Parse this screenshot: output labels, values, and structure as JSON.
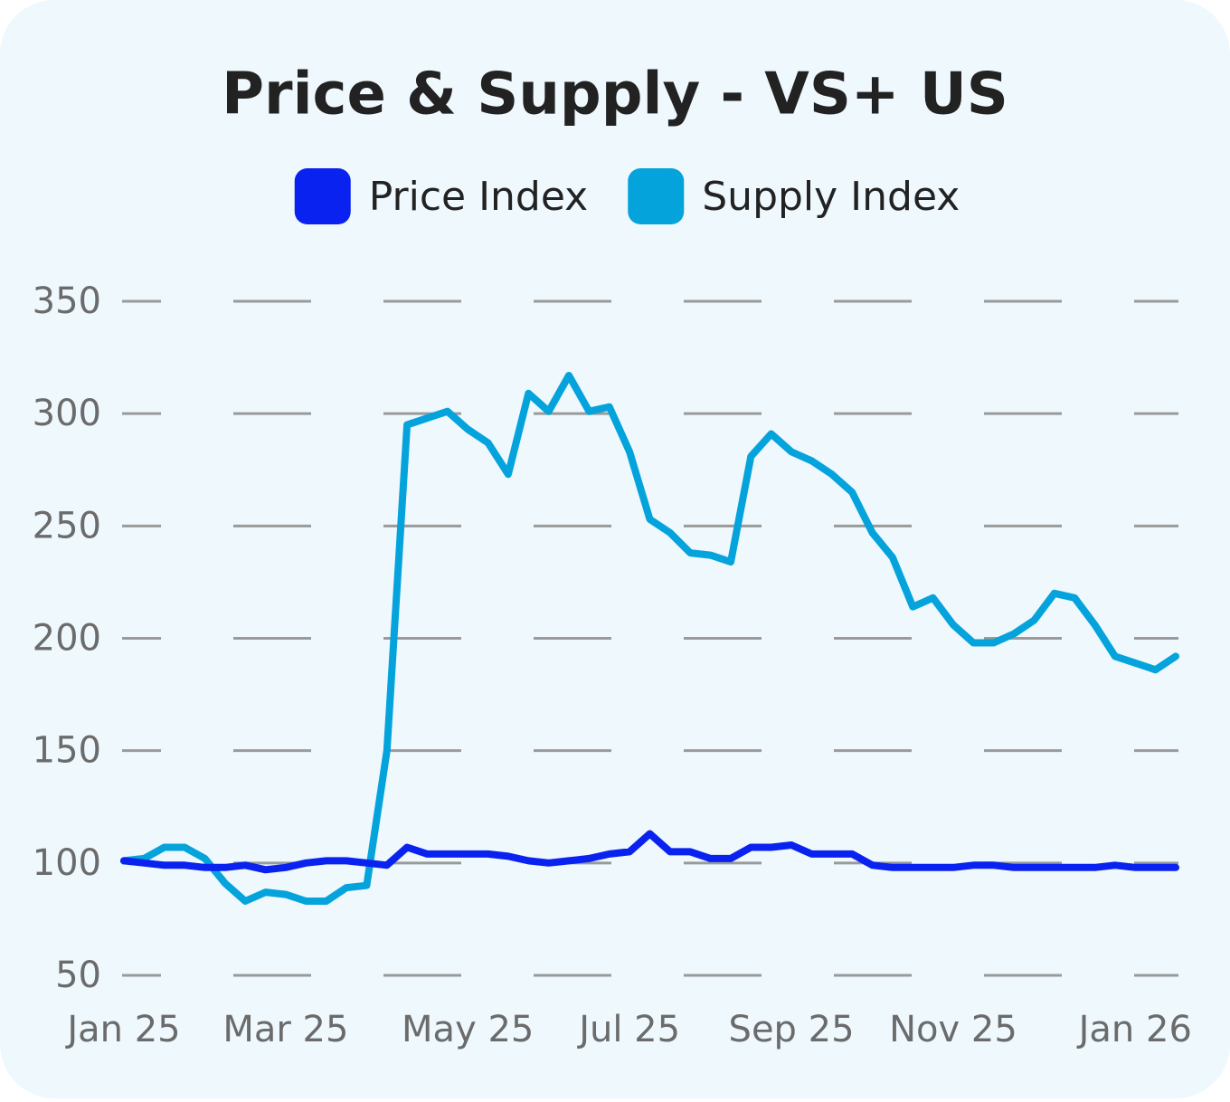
{
  "chart_data": {
    "type": "line",
    "title": "Price & Supply - VS+ US",
    "categories": [
      "Jan 25",
      null,
      null,
      null,
      null,
      null,
      null,
      null,
      "Mar 25",
      null,
      null,
      null,
      null,
      null,
      null,
      null,
      null,
      "May 25",
      null,
      null,
      null,
      null,
      null,
      null,
      null,
      "Jul 25",
      null,
      null,
      null,
      null,
      null,
      null,
      null,
      "Sep 25",
      null,
      null,
      null,
      null,
      null,
      null,
      null,
      "Nov 25",
      null,
      null,
      null,
      null,
      null,
      null,
      null,
      null,
      "Jan 26",
      null,
      null
    ],
    "series": [
      {
        "name": "Price Index",
        "color": "#0a22f0",
        "values": [
          101,
          100,
          99,
          99,
          98,
          98,
          99,
          97,
          98,
          100,
          101,
          101,
          100,
          99,
          107,
          104,
          104,
          104,
          104,
          103,
          101,
          100,
          101,
          102,
          104,
          105,
          113,
          105,
          105,
          102,
          102,
          107,
          107,
          108,
          104,
          104,
          104,
          99,
          98,
          98,
          98,
          98,
          99,
          99,
          98,
          98,
          98,
          98,
          98,
          99,
          98,
          98,
          98
        ]
      },
      {
        "name": "Supply Index",
        "color": "#05a3dc",
        "values": [
          101,
          102,
          107,
          107,
          102,
          91,
          83,
          87,
          86,
          83,
          83,
          89,
          90,
          150,
          295,
          298,
          301,
          293,
          287,
          273,
          309,
          301,
          317,
          301,
          303,
          283,
          253,
          247,
          238,
          237,
          234,
          281,
          291,
          283,
          279,
          273,
          265,
          247,
          236,
          214,
          218,
          206,
          198,
          198,
          202,
          208,
          220,
          218,
          206,
          192,
          189,
          186,
          192
        ]
      }
    ],
    "ylim": [
      50,
      350
    ],
    "yticks": [
      50,
      100,
      150,
      200,
      250,
      300,
      350
    ],
    "grid": true,
    "legend": "top"
  }
}
